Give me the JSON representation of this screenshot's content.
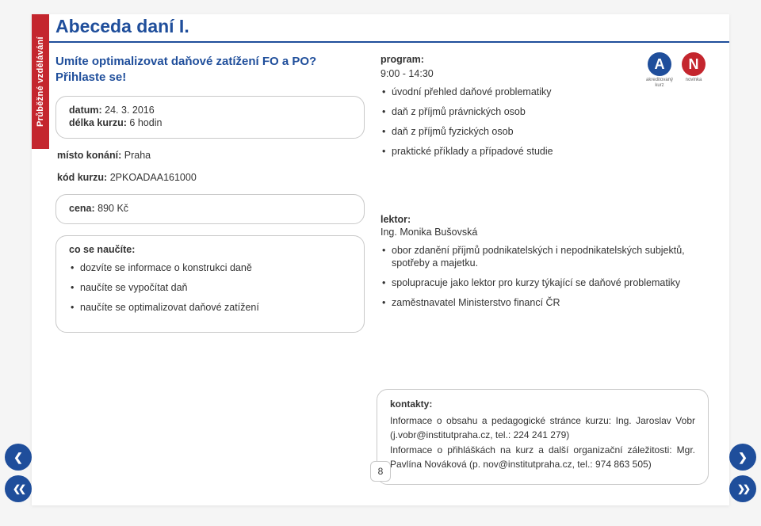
{
  "side_tab": {
    "label": "Průběžné vzdělávání",
    "color": "#c4262e"
  },
  "title": "Abeceda daní I.",
  "subtitle": "Umíte optimalizovat daňové zatížení FO a PO? Přihlaste se!",
  "info_box": {
    "date_label": "datum:",
    "date_value": "24. 3. 2016",
    "length_label": "délka kurzu:",
    "length_value": "6 hodin",
    "place_label": "místo konání:",
    "place_value": "Praha",
    "code_label": "kód kurzu:",
    "code_value": "2PKOADAA161000",
    "price_label": "cena:",
    "price_value": "890 Kč"
  },
  "learn": {
    "heading": "co se naučíte:",
    "items": [
      "dozvíte se informace o konstrukci daně",
      "naučíte se vypočítat daň",
      "naučíte se optimalizovat daňové zatížení"
    ]
  },
  "program": {
    "heading": "program:",
    "time": "9:00 - 14:30",
    "items": [
      "úvodní přehled daňové problematiky",
      "daň z příjmů právnických osob",
      "daň z příjmů fyzických osob",
      "praktické příklady a případové studie"
    ]
  },
  "badges": {
    "a": {
      "letter": "A",
      "caption": "akreditovaný kurz",
      "bg": "#1f4e9b"
    },
    "n": {
      "letter": "N",
      "caption": "novinka",
      "bg": "#c4262e"
    }
  },
  "lecturer": {
    "heading": "lektor:",
    "name": "Ing. Monika Bušovská",
    "items": [
      "obor zdanění příjmů podnikatelských i nepodnikatelských subjektů, spotřeby a majetku.",
      "spolupracuje jako lektor pro kurzy týkající se daňové problematiky",
      "zaměstnavatel Ministerstvo financí ČR"
    ]
  },
  "contacts": {
    "heading": "kontakty:",
    "line1": "Informace o obsahu a pedagogické stránce kurzu: Ing. Jaroslav Vobr (j.vobr@institutpraha.cz, tel.: 224 241 279)",
    "line2": "Informace o přihláškách na kurz a další organizační záležitosti: Mgr. Pavlína Nováková (p. nov@institutpraha.cz, tel.: 974 863 505)"
  },
  "page_number": "8",
  "colors": {
    "brand_blue": "#1f4e9b",
    "brand_red": "#c4262e",
    "border": "#c9c9c9",
    "text": "#333333",
    "bg": "#ffffff"
  }
}
